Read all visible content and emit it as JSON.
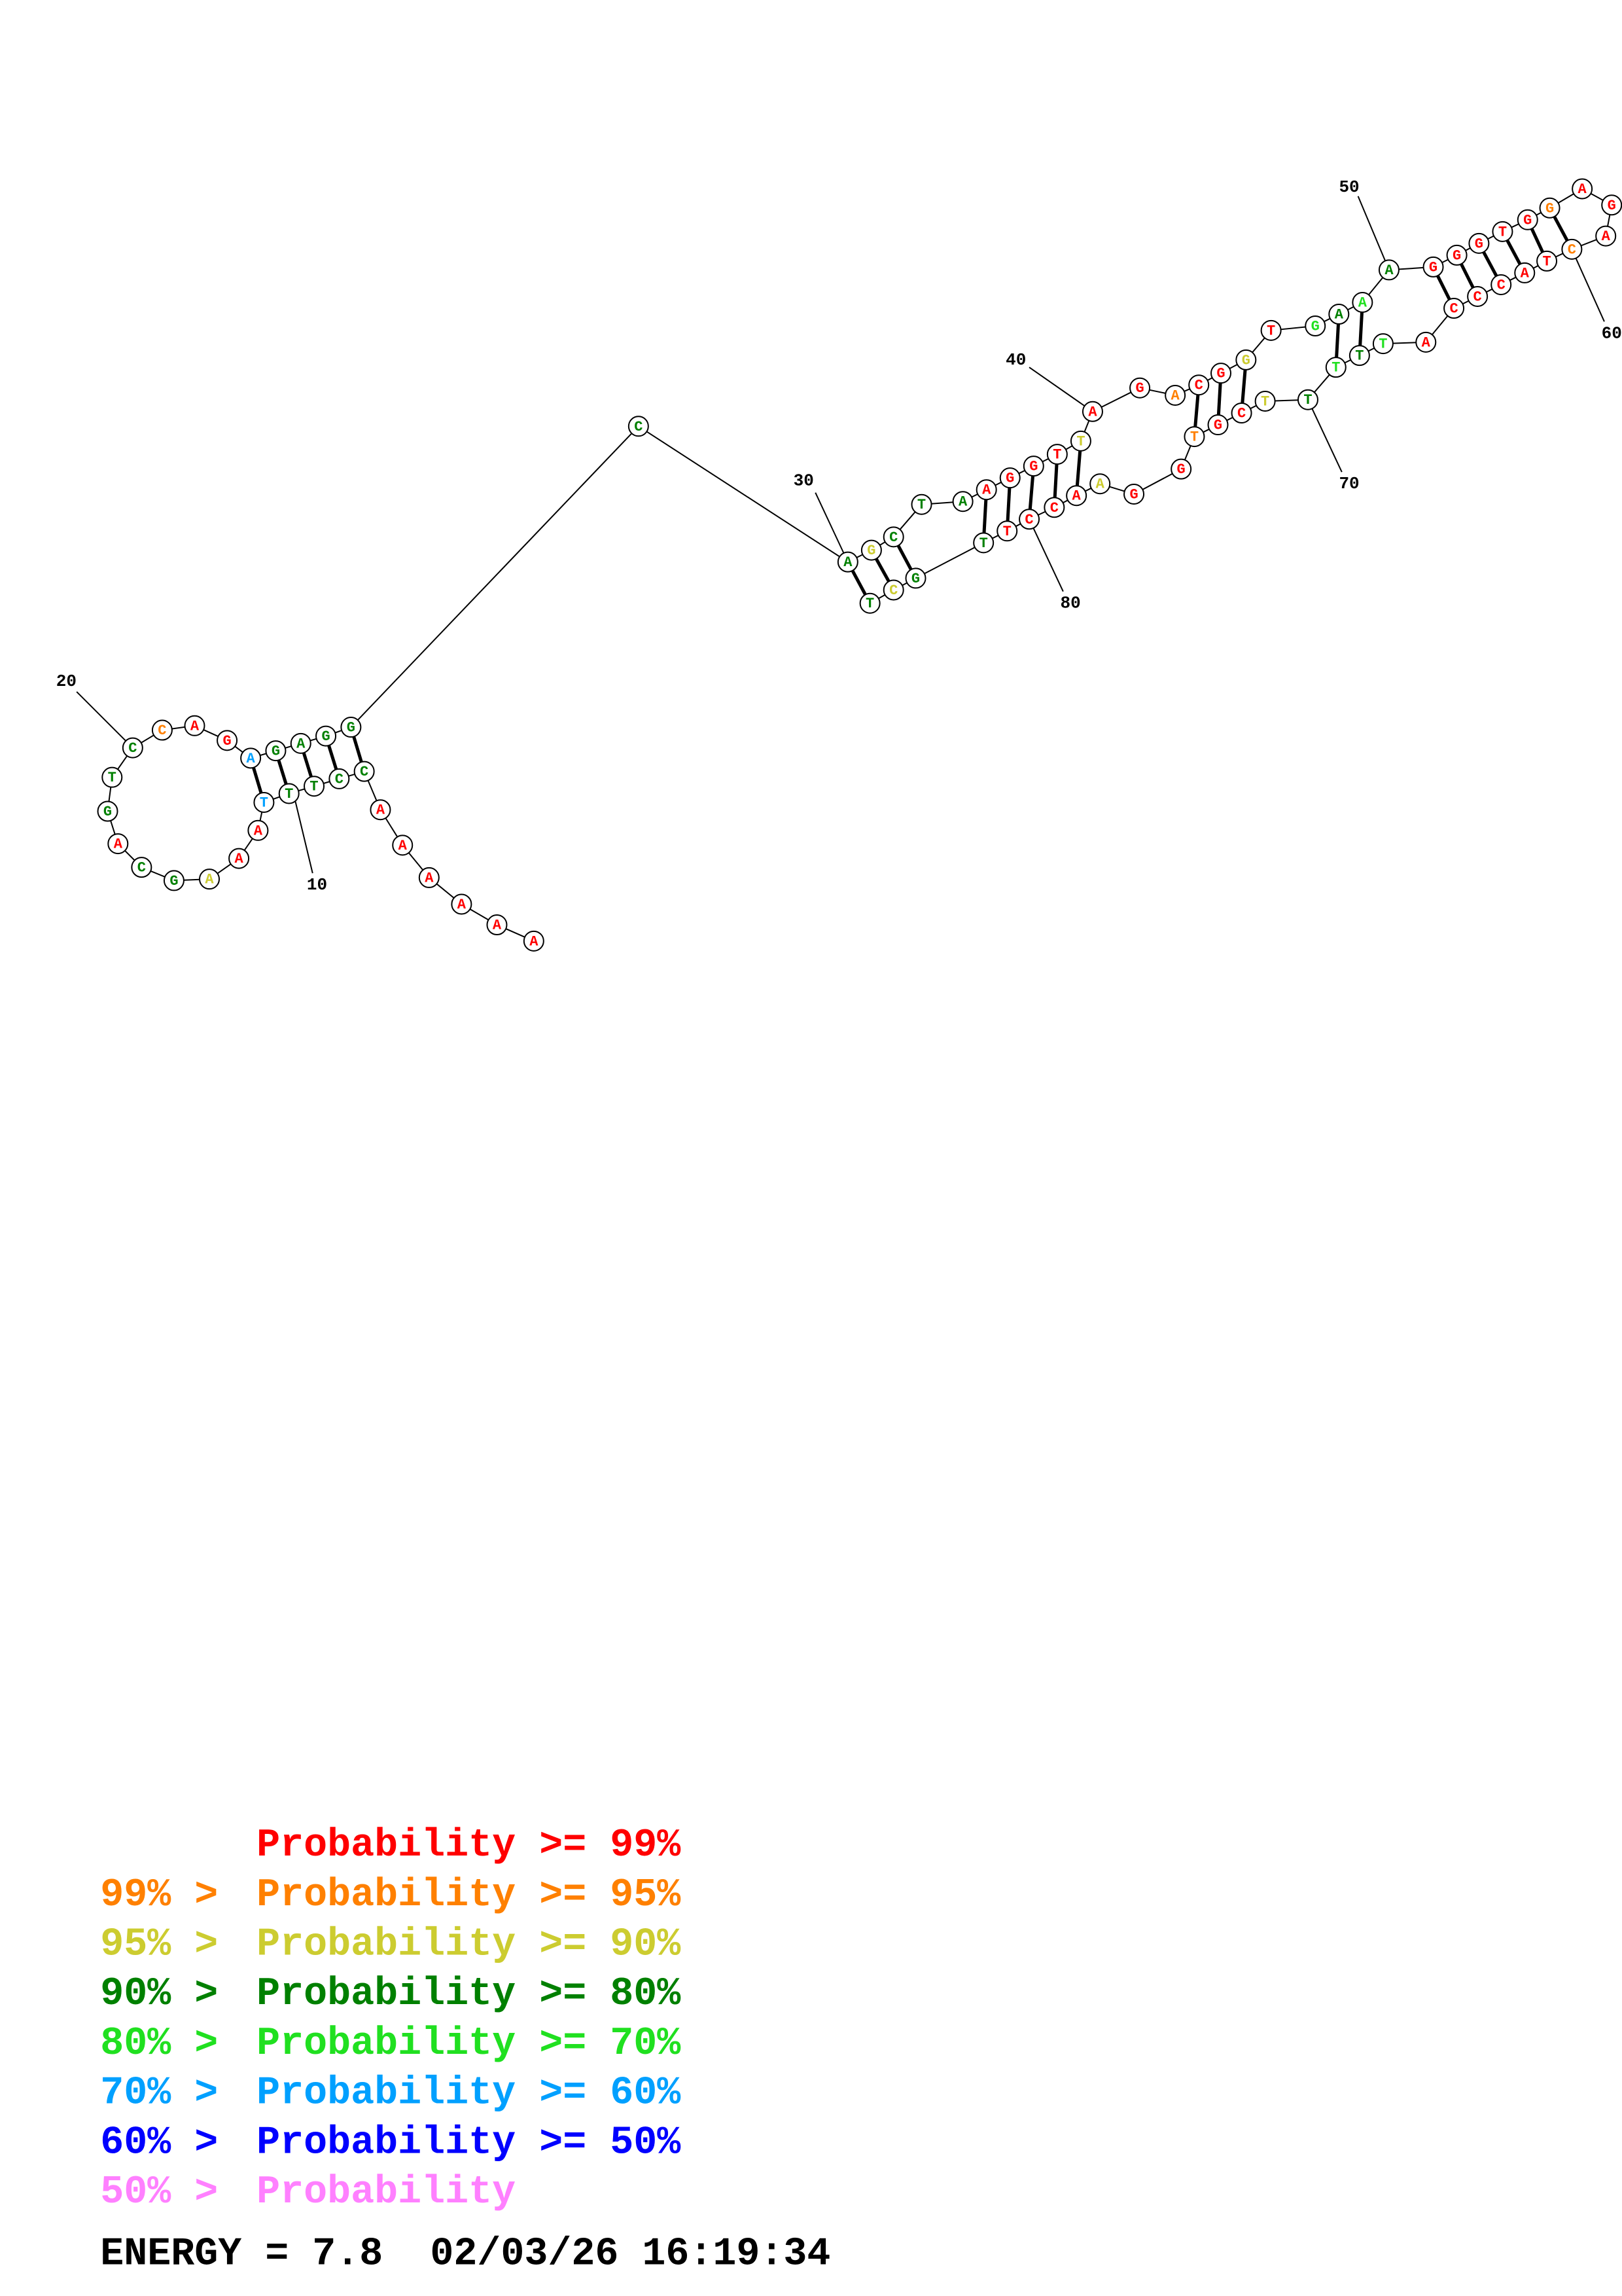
{
  "nucleotides": [
    {
      "base": "A",
      "color": "#ff0000"
    },
    {
      "base": "A",
      "color": "#ff0000"
    },
    {
      "base": "A",
      "color": "#ff0000"
    },
    {
      "base": "A",
      "color": "#ff0000"
    },
    {
      "base": "A",
      "color": "#ff0000"
    },
    {
      "base": "A",
      "color": "#ff0000"
    },
    {
      "base": "C",
      "color": "#008000"
    },
    {
      "base": "C",
      "color": "#008000"
    },
    {
      "base": "T",
      "color": "#008000"
    },
    {
      "base": "T",
      "color": "#008000"
    },
    {
      "base": "T",
      "color": "#00a0ff"
    },
    {
      "base": "A",
      "color": "#ff0000"
    },
    {
      "base": "A",
      "color": "#ff0000"
    },
    {
      "base": "A",
      "color": "#cccc30"
    },
    {
      "base": "G",
      "color": "#008000"
    },
    {
      "base": "C",
      "color": "#008000"
    },
    {
      "base": "A",
      "color": "#ff0000"
    },
    {
      "base": "G",
      "color": "#008000"
    },
    {
      "base": "T",
      "color": "#008000"
    },
    {
      "base": "C",
      "color": "#008000"
    },
    {
      "base": "C",
      "color": "#ff8000"
    },
    {
      "base": "A",
      "color": "#ff0000"
    },
    {
      "base": "G",
      "color": "#ff0000"
    },
    {
      "base": "A",
      "color": "#00a0ff"
    },
    {
      "base": "G",
      "color": "#008000"
    },
    {
      "base": "A",
      "color": "#008000"
    },
    {
      "base": "G",
      "color": "#008000"
    },
    {
      "base": "G",
      "color": "#008000"
    },
    {
      "base": "C",
      "color": "#008000"
    },
    {
      "base": "A",
      "color": "#008000"
    },
    {
      "base": "G",
      "color": "#cccc30"
    },
    {
      "base": "C",
      "color": "#008000"
    },
    {
      "base": "T",
      "color": "#008000"
    },
    {
      "base": "A",
      "color": "#008000"
    },
    {
      "base": "A",
      "color": "#ff0000"
    },
    {
      "base": "G",
      "color": "#ff0000"
    },
    {
      "base": "G",
      "color": "#ff0000"
    },
    {
      "base": "T",
      "color": "#ff0000"
    },
    {
      "base": "T",
      "color": "#cccc30"
    },
    {
      "base": "A",
      "color": "#ff0000"
    },
    {
      "base": "G",
      "color": "#ff0000"
    },
    {
      "base": "A",
      "color": "#ff8000"
    },
    {
      "base": "C",
      "color": "#ff0000"
    },
    {
      "base": "G",
      "color": "#ff0000"
    },
    {
      "base": "G",
      "color": "#cccc30"
    },
    {
      "base": "T",
      "color": "#ff0000"
    },
    {
      "base": "G",
      "color": "#20e020"
    },
    {
      "base": "A",
      "color": "#008000"
    },
    {
      "base": "A",
      "color": "#20e020"
    },
    {
      "base": "A",
      "color": "#008000"
    },
    {
      "base": "G",
      "color": "#ff0000"
    },
    {
      "base": "G",
      "color": "#ff0000"
    },
    {
      "base": "G",
      "color": "#ff0000"
    },
    {
      "base": "T",
      "color": "#ff0000"
    },
    {
      "base": "G",
      "color": "#ff0000"
    },
    {
      "base": "G",
      "color": "#ff8000"
    },
    {
      "base": "A",
      "color": "#ff0000"
    },
    {
      "base": "G",
      "color": "#ff0000"
    },
    {
      "base": "A",
      "color": "#ff0000"
    },
    {
      "base": "C",
      "color": "#ff8000"
    },
    {
      "base": "T",
      "color": "#ff0000"
    },
    {
      "base": "A",
      "color": "#ff0000"
    },
    {
      "base": "C",
      "color": "#ff0000"
    },
    {
      "base": "C",
      "color": "#ff0000"
    },
    {
      "base": "C",
      "color": "#ff0000"
    },
    {
      "base": "A",
      "color": "#ff0000"
    },
    {
      "base": "T",
      "color": "#20e020"
    },
    {
      "base": "T",
      "color": "#008000"
    },
    {
      "base": "T",
      "color": "#20e020"
    },
    {
      "base": "T",
      "color": "#008000"
    },
    {
      "base": "T",
      "color": "#cccc30"
    },
    {
      "base": "C",
      "color": "#ff0000"
    },
    {
      "base": "G",
      "color": "#ff0000"
    },
    {
      "base": "T",
      "color": "#ff8000"
    },
    {
      "base": "G",
      "color": "#ff0000"
    },
    {
      "base": "G",
      "color": "#ff0000"
    },
    {
      "base": "A",
      "color": "#cccc30"
    },
    {
      "base": "A",
      "color": "#ff0000"
    },
    {
      "base": "C",
      "color": "#ff0000"
    },
    {
      "base": "C",
      "color": "#ff0000"
    },
    {
      "base": "T",
      "color": "#ff0000"
    },
    {
      "base": "T",
      "color": "#008000"
    },
    {
      "base": "G",
      "color": "#008000"
    },
    {
      "base": "C",
      "color": "#cccc30"
    },
    {
      "base": "T",
      "color": "#008000"
    }
  ],
  "position_labels": [
    "10",
    "20",
    "30",
    "40",
    "50",
    "60",
    "70",
    "80"
  ],
  "legend": [
    {
      "text": "Probability >= 99%",
      "color": "#ff0000"
    },
    {
      "prefix": "99% >",
      "text": "Probability >= 95%",
      "color": "#ff8000"
    },
    {
      "prefix": "95% >",
      "text": "Probability >= 90%",
      "color": "#cccc30"
    },
    {
      "prefix": "90% >",
      "text": "Probability >= 80%",
      "color": "#008000"
    },
    {
      "prefix": "80% >",
      "text": "Probability >= 70%",
      "color": "#20e020"
    },
    {
      "prefix": "70% >",
      "text": "Probability >= 60%",
      "color": "#00a0ff"
    },
    {
      "prefix": "60% >",
      "text": "Probability >= 50%",
      "color": "#0000ff"
    },
    {
      "prefix": "50% >",
      "text": "Probability",
      "color": "#ff80ff"
    }
  ],
  "footer": "ENERGY = 7.8  02/03/26 16:19:34"
}
